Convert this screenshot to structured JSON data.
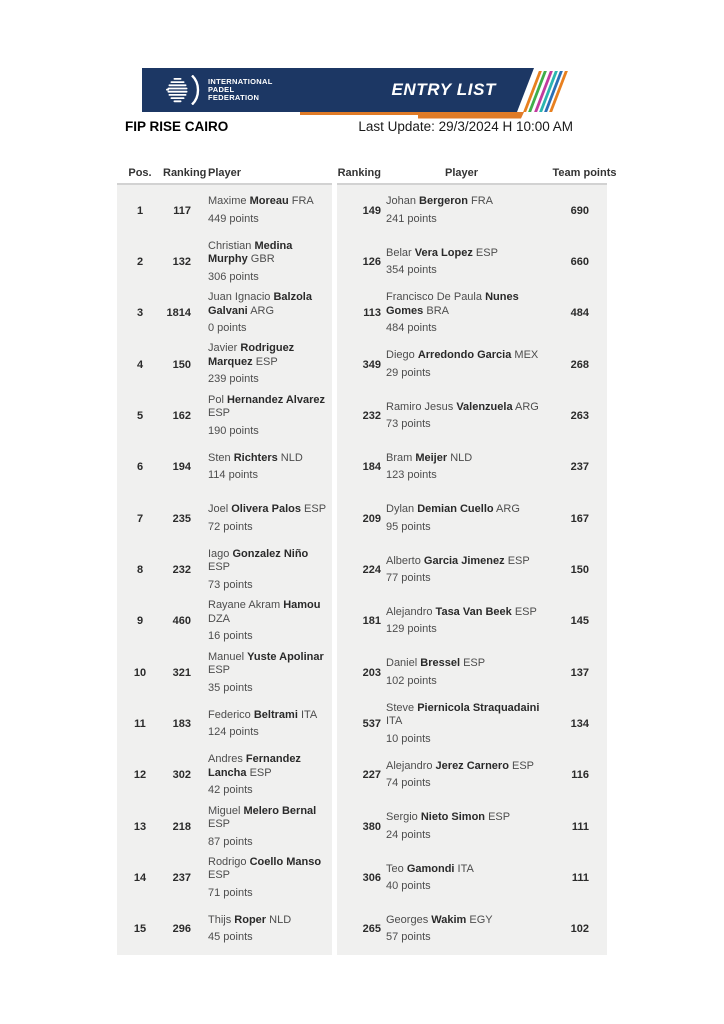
{
  "header": {
    "logo": {
      "lines": [
        "INTERNATIONAL",
        "PADEL",
        "FEDERATION"
      ]
    },
    "banner_title": "ENTRY LIST",
    "event_title": "FIP RISE CAIRO",
    "last_update": "Last Update: 29/3/2024 H 10:00 AM",
    "colors": {
      "navy": "#1c3764",
      "orange": "#e07b27",
      "stripes": [
        "#e8801f",
        "#3fae49",
        "#c23b9e",
        "#2bb5b0",
        "#2a6fb5",
        "#e8801f"
      ]
    }
  },
  "table": {
    "headers": {
      "pos": "Pos.",
      "ranking_left": "Ranking",
      "player_left": "Player",
      "ranking_right": "Ranking",
      "player_right": "Player",
      "team_points": "Team points"
    },
    "rows": [
      {
        "pos": "1",
        "p1": {
          "ranking": "117",
          "first": "Maxime",
          "last": "Moreau",
          "country": "FRA",
          "points": "449 points"
        },
        "p2": {
          "ranking": "149",
          "first": "Johan",
          "last": "Bergeron",
          "country": "FRA",
          "points": "241 points"
        },
        "team": "690"
      },
      {
        "pos": "2",
        "p1": {
          "ranking": "132",
          "first": "Christian",
          "last": "Medina Murphy",
          "country": "GBR",
          "points": "306 points"
        },
        "p2": {
          "ranking": "126",
          "first": "Belar",
          "last": "Vera Lopez",
          "country": "ESP",
          "points": "354 points"
        },
        "team": "660"
      },
      {
        "pos": "3",
        "p1": {
          "ranking": "1814",
          "first": "Juan Ignacio",
          "last": "Balzola Galvani",
          "country": "ARG",
          "points": "0 points"
        },
        "p2": {
          "ranking": "113",
          "first": "Francisco De Paula",
          "last": "Nunes Gomes",
          "country": "BRA",
          "points": "484 points"
        },
        "team": "484"
      },
      {
        "pos": "4",
        "p1": {
          "ranking": "150",
          "first": "Javier",
          "last": "Rodriguez Marquez",
          "country": "ESP",
          "points": "239 points"
        },
        "p2": {
          "ranking": "349",
          "first": "Diego",
          "last": "Arredondo Garcia",
          "country": "MEX",
          "points": "29 points"
        },
        "team": "268"
      },
      {
        "pos": "5",
        "p1": {
          "ranking": "162",
          "first": "Pol",
          "last": "Hernandez Alvarez",
          "country": "ESP",
          "points": "190 points"
        },
        "p2": {
          "ranking": "232",
          "first": "Ramiro Jesus",
          "last": "Valenzuela",
          "country": "ARG",
          "points": "73 points"
        },
        "team": "263"
      },
      {
        "pos": "6",
        "p1": {
          "ranking": "194",
          "first": "Sten",
          "last": "Richters",
          "country": "NLD",
          "points": "114 points"
        },
        "p2": {
          "ranking": "184",
          "first": "Bram",
          "last": "Meijer",
          "country": "NLD",
          "points": "123 points"
        },
        "team": "237"
      },
      {
        "pos": "7",
        "p1": {
          "ranking": "235",
          "first": "Joel",
          "last": "Olivera Palos",
          "country": "ESP",
          "points": "72 points"
        },
        "p2": {
          "ranking": "209",
          "first": "Dylan",
          "last": "Demian Cuello",
          "country": "ARG",
          "points": "95 points"
        },
        "team": "167"
      },
      {
        "pos": "8",
        "p1": {
          "ranking": "232",
          "first": "Iago",
          "last": "Gonzalez Niño",
          "country": "ESP",
          "points": "73 points"
        },
        "p2": {
          "ranking": "224",
          "first": "Alberto",
          "last": "Garcia Jimenez",
          "country": "ESP",
          "points": "77 points"
        },
        "team": "150"
      },
      {
        "pos": "9",
        "p1": {
          "ranking": "460",
          "first": "Rayane Akram",
          "last": "Hamou",
          "country": "DZA",
          "points": "16 points"
        },
        "p2": {
          "ranking": "181",
          "first": "Alejandro",
          "last": "Tasa Van Beek",
          "country": "ESP",
          "points": "129 points"
        },
        "team": "145"
      },
      {
        "pos": "10",
        "p1": {
          "ranking": "321",
          "first": "Manuel",
          "last": "Yuste Apolinar",
          "country": "ESP",
          "points": "35 points"
        },
        "p2": {
          "ranking": "203",
          "first": "Daniel",
          "last": "Bressel",
          "country": "ESP",
          "points": "102 points"
        },
        "team": "137"
      },
      {
        "pos": "11",
        "p1": {
          "ranking": "183",
          "first": "Federico",
          "last": "Beltrami",
          "country": "ITA",
          "points": "124 points"
        },
        "p2": {
          "ranking": "537",
          "first": "Steve",
          "last": "Piernicola Straquadaini",
          "country": "ITA",
          "points": "10 points"
        },
        "team": "134"
      },
      {
        "pos": "12",
        "p1": {
          "ranking": "302",
          "first": "Andres",
          "last": "Fernandez Lancha",
          "country": "ESP",
          "points": "42 points"
        },
        "p2": {
          "ranking": "227",
          "first": "Alejandro",
          "last": "Jerez Carnero",
          "country": "ESP",
          "points": "74 points"
        },
        "team": "116"
      },
      {
        "pos": "13",
        "p1": {
          "ranking": "218",
          "first": "Miguel",
          "last": "Melero Bernal",
          "country": "ESP",
          "points": "87 points"
        },
        "p2": {
          "ranking": "380",
          "first": "Sergio",
          "last": "Nieto Simon",
          "country": "ESP",
          "points": "24 points"
        },
        "team": "111"
      },
      {
        "pos": "14",
        "p1": {
          "ranking": "237",
          "first": "Rodrigo",
          "last": "Coello Manso",
          "country": "ESP",
          "points": "71 points"
        },
        "p2": {
          "ranking": "306",
          "first": "Teo",
          "last": "Gamondi",
          "country": "ITA",
          "points": "40 points"
        },
        "team": "111"
      },
      {
        "pos": "15",
        "p1": {
          "ranking": "296",
          "first": "Thijs",
          "last": "Roper",
          "country": "NLD",
          "points": "45 points"
        },
        "p2": {
          "ranking": "265",
          "first": "Georges",
          "last": "Wakim",
          "country": "EGY",
          "points": "57 points"
        },
        "team": "102"
      }
    ]
  }
}
